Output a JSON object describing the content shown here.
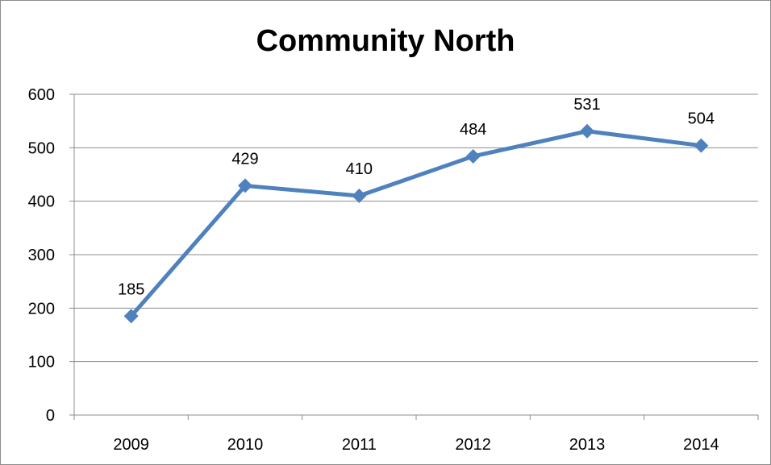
{
  "chart_data": {
    "type": "line",
    "title": "Community North",
    "xlabel": "",
    "ylabel": "",
    "categories": [
      "2009",
      "2010",
      "2011",
      "2012",
      "2013",
      "2014"
    ],
    "values": [
      185,
      429,
      410,
      484,
      531,
      504
    ],
    "data_labels": [
      "185",
      "429",
      "410",
      "484",
      "531",
      "504"
    ],
    "ylim": [
      0,
      600
    ],
    "yticks": [
      "0",
      "100",
      "200",
      "300",
      "400",
      "500",
      "600"
    ],
    "grid": true,
    "legend": "none",
    "marker": "diamond",
    "line_color": "#4f81bd"
  }
}
